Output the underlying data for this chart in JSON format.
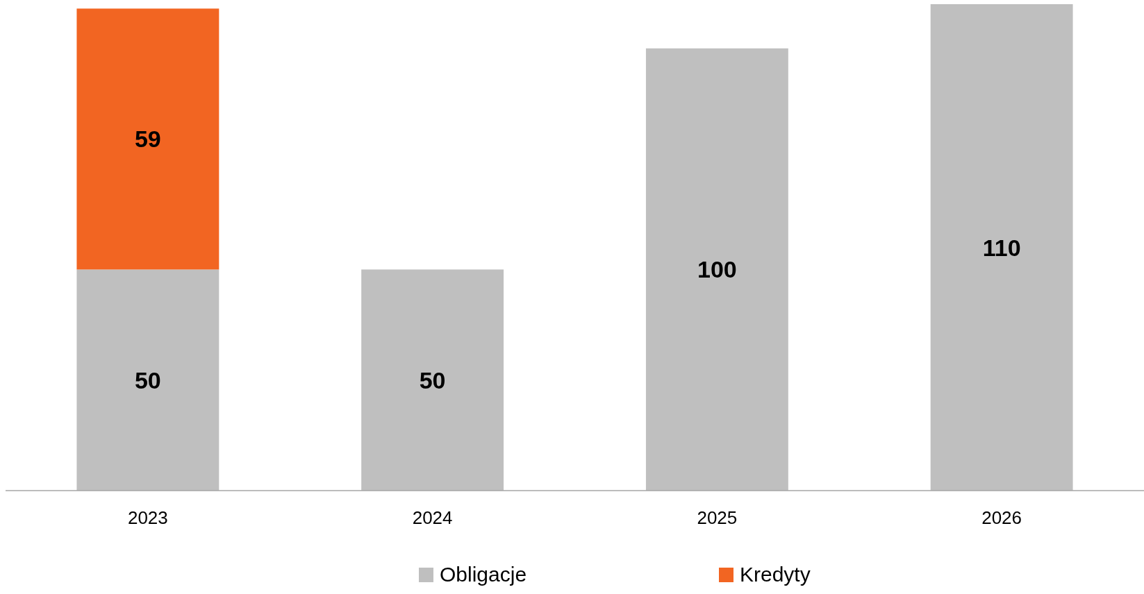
{
  "chart_data": {
    "type": "bar",
    "stacked": true,
    "categories": [
      "2023",
      "2024",
      "2025",
      "2026"
    ],
    "series": [
      {
        "name": "Obligacje",
        "color": "#bfbfbf",
        "values": [
          50,
          50,
          100,
          110
        ]
      },
      {
        "name": "Kredyty",
        "color": "#f26522",
        "values": [
          59,
          null,
          null,
          null
        ]
      }
    ],
    "data_labels": true,
    "legend": "bottom"
  }
}
